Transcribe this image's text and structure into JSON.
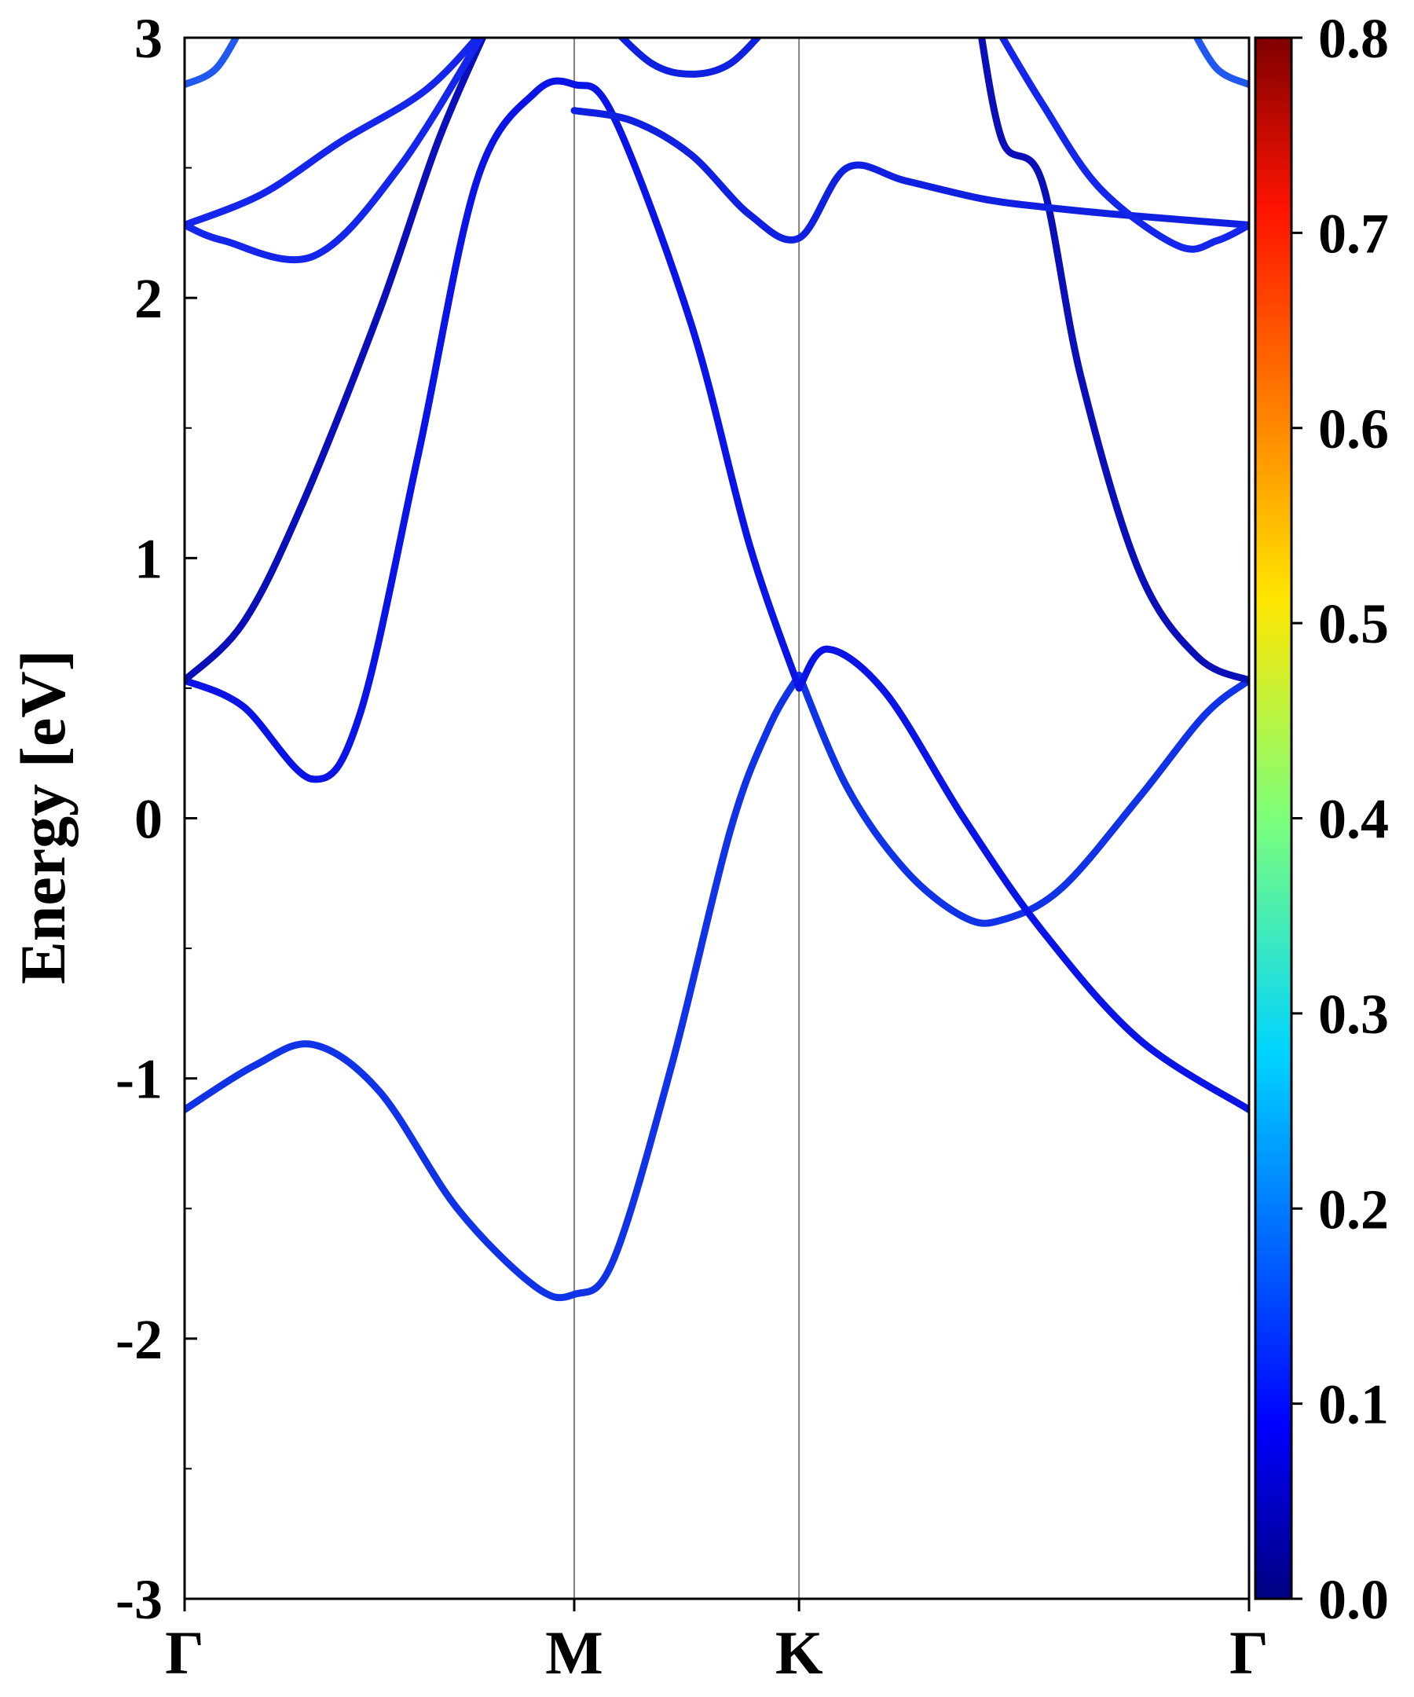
{
  "chart_data": {
    "type": "line",
    "title": "",
    "xlabel": "",
    "ylabel": "Energy [eV]",
    "ylim": [
      -3,
      3
    ],
    "grid": false,
    "yticks": [
      {
        "value": 3,
        "label": "3"
      },
      {
        "value": 2,
        "label": "2"
      },
      {
        "value": 1,
        "label": "1"
      },
      {
        "value": 0,
        "label": "0"
      },
      {
        "value": -1,
        "label": "-1"
      },
      {
        "value": -2,
        "label": "-2"
      },
      {
        "value": -3,
        "label": "-3"
      }
    ],
    "xticks": [
      {
        "k": 0,
        "label": "Γ"
      },
      {
        "k": 1,
        "label": "M"
      },
      {
        "k": 1.577,
        "label": "K"
      },
      {
        "k": 2.732,
        "label": "Γ"
      }
    ],
    "colorbar": {
      "min": 0.0,
      "max": 0.8,
      "colormap": "jet",
      "ticks": [
        {
          "value": 0.8,
          "label": "0.8"
        },
        {
          "value": 0.7,
          "label": "0.7"
        },
        {
          "value": 0.6,
          "label": "0.6"
        },
        {
          "value": 0.5,
          "label": "0.5"
        },
        {
          "value": 0.4,
          "label": "0.4"
        },
        {
          "value": 0.3,
          "label": "0.3"
        },
        {
          "value": 0.2,
          "label": "0.2"
        },
        {
          "value": 0.1,
          "label": "0.1"
        },
        {
          "value": 0.0,
          "label": "0.0"
        }
      ]
    },
    "series": [
      {
        "color": "#1033e8",
        "points": [
          [
            0,
            -1.12
          ],
          [
            0.18,
            -0.95
          ],
          [
            0.33,
            -0.87
          ],
          [
            0.5,
            -1.05
          ],
          [
            0.7,
            -1.5
          ],
          [
            0.9,
            -1.8
          ],
          [
            1.0,
            -1.83
          ],
          [
            1.1,
            -1.7
          ],
          [
            1.25,
            -0.95
          ],
          [
            1.4,
            -0.05
          ],
          [
            1.5,
            0.35
          ],
          [
            1.577,
            0.55
          ]
        ]
      },
      {
        "color": "#1033e8",
        "points": [
          [
            1.577,
            0.55
          ],
          [
            1.7,
            0.12
          ],
          [
            1.85,
            -0.2
          ],
          [
            2.0,
            -0.38
          ],
          [
            2.1,
            -0.39
          ],
          [
            2.25,
            -0.27
          ],
          [
            2.45,
            0.08
          ],
          [
            2.62,
            0.4
          ],
          [
            2.732,
            0.53
          ]
        ]
      },
      {
        "color": "#0a14e6",
        "points": [
          [
            0,
            0.53
          ],
          [
            0.15,
            0.43
          ],
          [
            0.33,
            0.15
          ],
          [
            0.45,
            0.4
          ],
          [
            0.6,
            1.4
          ],
          [
            0.75,
            2.45
          ],
          [
            0.9,
            2.79
          ],
          [
            1.0,
            2.82
          ],
          [
            1.1,
            2.7
          ],
          [
            1.3,
            1.9
          ],
          [
            1.45,
            1.05
          ],
          [
            1.577,
            0.5
          ]
        ]
      },
      {
        "color": "#0a14e6",
        "points": [
          [
            1.577,
            0.5
          ],
          [
            1.65,
            0.65
          ],
          [
            1.8,
            0.48
          ],
          [
            2.0,
            0.0
          ],
          [
            2.2,
            -0.43
          ],
          [
            2.45,
            -0.85
          ],
          [
            2.732,
            -1.12
          ]
        ]
      },
      {
        "color": "#0a0fb8",
        "points": [
          [
            0,
            0.53
          ],
          [
            0.15,
            0.75
          ],
          [
            0.3,
            1.2
          ],
          [
            0.5,
            1.95
          ],
          [
            0.65,
            2.6
          ],
          [
            0.78,
            3.05
          ]
        ]
      },
      {
        "color": "#0a0fb8",
        "points": [
          [
            2.04,
            3.05
          ],
          [
            2.1,
            2.6
          ],
          [
            2.2,
            2.45
          ],
          [
            2.3,
            1.7
          ],
          [
            2.45,
            0.95
          ],
          [
            2.6,
            0.62
          ],
          [
            2.732,
            0.53
          ]
        ]
      },
      {
        "color": "#1426ec",
        "points": [
          [
            0,
            2.28
          ],
          [
            0.2,
            2.4
          ],
          [
            0.4,
            2.6
          ],
          [
            0.62,
            2.8
          ],
          [
            0.78,
            3.05
          ]
        ]
      },
      {
        "color": "#1426ec",
        "points": [
          [
            0,
            2.28
          ],
          [
            0.1,
            2.22
          ],
          [
            0.33,
            2.16
          ],
          [
            0.55,
            2.5
          ],
          [
            0.78,
            3.05
          ]
        ]
      },
      {
        "color": "#1020e0",
        "points": [
          [
            1.0,
            2.72
          ],
          [
            1.15,
            2.68
          ],
          [
            1.3,
            2.55
          ],
          [
            1.45,
            2.32
          ],
          [
            1.577,
            2.23
          ],
          [
            1.7,
            2.5
          ],
          [
            1.85,
            2.45
          ],
          [
            2.05,
            2.38
          ],
          [
            2.2,
            2.35
          ],
          [
            2.4,
            2.32
          ],
          [
            2.732,
            2.28
          ]
        ]
      },
      {
        "color": "#1426ec",
        "points": [
          [
            2.08,
            3.05
          ],
          [
            2.2,
            2.75
          ],
          [
            2.35,
            2.42
          ],
          [
            2.55,
            2.2
          ],
          [
            2.65,
            2.22
          ],
          [
            2.732,
            2.28
          ]
        ]
      },
      {
        "color": "#1020e0",
        "points": [
          [
            1.09,
            3.05
          ],
          [
            1.2,
            2.9
          ],
          [
            1.3,
            2.86
          ],
          [
            1.4,
            2.9
          ],
          [
            1.5,
            3.05
          ]
        ]
      },
      {
        "color": "#2058f0",
        "points": [
          [
            0,
            2.82
          ],
          [
            0.08,
            2.88
          ],
          [
            0.15,
            3.05
          ]
        ]
      },
      {
        "color": "#2058f0",
        "points": [
          [
            2.732,
            2.82
          ],
          [
            2.65,
            2.88
          ],
          [
            2.58,
            3.05
          ]
        ]
      }
    ]
  }
}
